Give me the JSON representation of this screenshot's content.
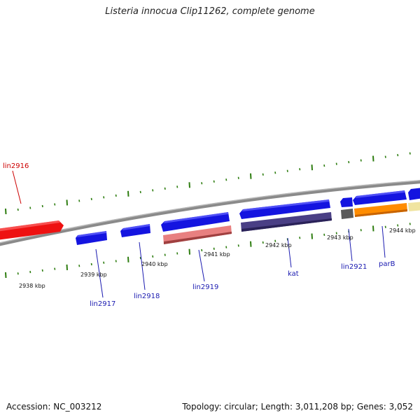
{
  "title": "Listeria innocua Clip11262, complete genome",
  "footer": {
    "accession": "Accession: NC_003212",
    "stats": "Topology: circular; Length: 3,011,208 bp; Genes: 3,052"
  },
  "colors": {
    "backbone": "#8a8a8a",
    "tick": "#2e7d10",
    "blue_gene": "#1414e0",
    "red_gene": "#ee1111",
    "pink_gene": "#e88080",
    "navy_gene": "#4a3f85",
    "gray_gene": "#5a5a5a",
    "orange_gene": "#ff8c00",
    "yellow_gene": "#f0e4a0",
    "label_blue": "#1a1ab0",
    "label_red": "#cc0000"
  },
  "positions": [
    {
      "label": "2938 kbp"
    },
    {
      "label": "2939 kbp"
    },
    {
      "label": "2940 kbp"
    },
    {
      "label": "2941 kbp"
    },
    {
      "label": "2942 kbp"
    },
    {
      "label": "2943 kbp"
    },
    {
      "label": "2944 kbp"
    }
  ],
  "genes": [
    {
      "name": "lin2916",
      "color": "red"
    },
    {
      "name": "lin2917",
      "color": "blue"
    },
    {
      "name": "lin2918",
      "color": "blue"
    },
    {
      "name": "lin2919",
      "color": "blue"
    },
    {
      "name": "kat",
      "color": "blue"
    },
    {
      "name": "lin2921",
      "color": "blue"
    },
    {
      "name": "parB",
      "color": "blue"
    }
  ]
}
